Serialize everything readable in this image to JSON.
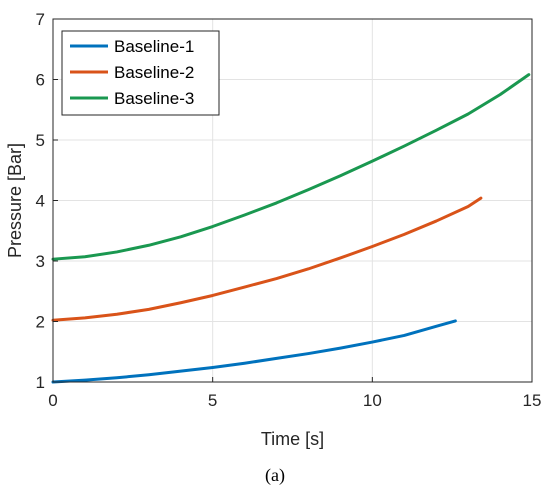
{
  "chart_data": {
    "type": "line",
    "xlabel": "Time [s]",
    "ylabel": "Pressure [Bar]",
    "xlim": [
      0,
      15
    ],
    "ylim": [
      1,
      7
    ],
    "xticks": [
      0,
      5,
      10,
      15
    ],
    "yticks": [
      1,
      2,
      3,
      4,
      5,
      6,
      7
    ],
    "grid": true,
    "legend_position": "top-left",
    "series": [
      {
        "name": "Baseline-1",
        "color": "#0072BD",
        "x": [
          0,
          1,
          2,
          3,
          4,
          5,
          6,
          7,
          8,
          9,
          10,
          11,
          12,
          12.6
        ],
        "y": [
          1.0,
          1.03,
          1.07,
          1.12,
          1.18,
          1.24,
          1.31,
          1.39,
          1.47,
          1.56,
          1.66,
          1.77,
          1.92,
          2.01
        ]
      },
      {
        "name": "Baseline-2",
        "color": "#D95319",
        "x": [
          0,
          1,
          2,
          3,
          4,
          5,
          6,
          7,
          8,
          9,
          10,
          11,
          12,
          13,
          13.4
        ],
        "y": [
          2.02,
          2.06,
          2.12,
          2.2,
          2.31,
          2.43,
          2.57,
          2.71,
          2.87,
          3.05,
          3.24,
          3.44,
          3.66,
          3.9,
          4.04
        ]
      },
      {
        "name": "Baseline-3",
        "color": "#1A9850",
        "x": [
          0,
          1,
          2,
          3,
          4,
          5,
          6,
          7,
          8,
          9,
          10,
          11,
          12,
          13,
          14,
          14.9
        ],
        "y": [
          3.03,
          3.07,
          3.15,
          3.26,
          3.4,
          3.57,
          3.76,
          3.96,
          4.18,
          4.41,
          4.65,
          4.9,
          5.16,
          5.43,
          5.75,
          6.08
        ]
      }
    ]
  },
  "caption": "(a)"
}
